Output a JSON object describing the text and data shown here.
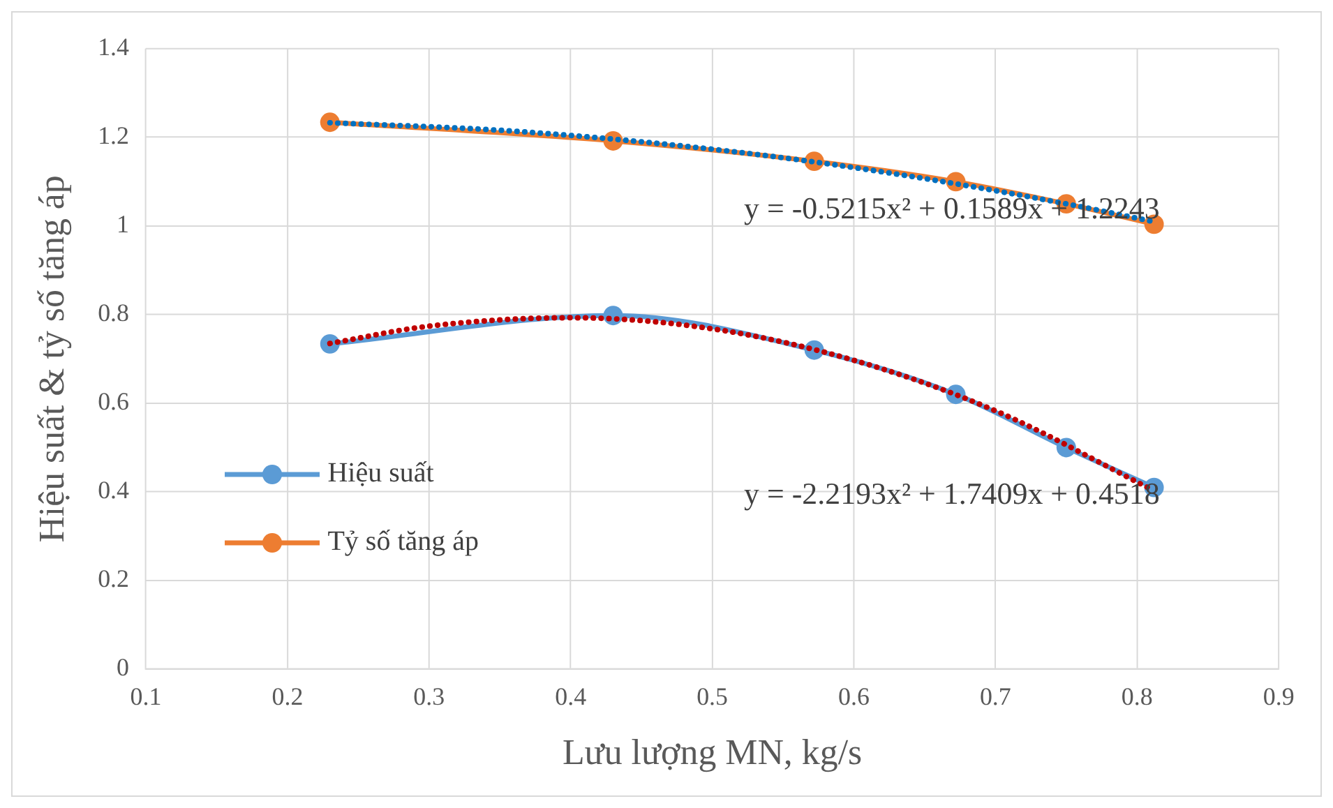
{
  "chart_data": {
    "type": "line",
    "xlabel": "Lưu lượng MN, kg/s",
    "ylabel": "Hiệu suất & tỷ số tăng áp",
    "xlim": [
      0.1,
      0.9
    ],
    "xticks": [
      0.1,
      0.2,
      0.3,
      0.4,
      0.5,
      0.6,
      0.7,
      0.8,
      0.9
    ],
    "ylim": [
      0,
      1.4
    ],
    "yticks": [
      0,
      0.2,
      0.4,
      0.6,
      0.8,
      1,
      1.2,
      1.4
    ],
    "grid": true,
    "legend": "left",
    "series": [
      {
        "name": "Hiệu suất",
        "color": "#5b9bd5",
        "marker": "circle",
        "line_style": "solid",
        "x": [
          0.23,
          0.43,
          0.572,
          0.672,
          0.75,
          0.812
        ],
        "values": [
          0.734,
          0.798,
          0.72,
          0.62,
          0.5,
          0.41
        ]
      },
      {
        "name": "Tỷ số tăng áp",
        "color": "#ed7d31",
        "marker": "circle",
        "line_style": "solid",
        "x": [
          0.23,
          0.43,
          0.572,
          0.672,
          0.75,
          0.812
        ],
        "values": [
          1.234,
          1.192,
          1.146,
          1.1,
          1.05,
          1.004
        ]
      },
      {
        "color": "#0070c0",
        "marker": "none",
        "line_style": "dotted",
        "x": [
          0.23,
          0.35,
          0.45,
          0.55,
          0.65,
          0.75,
          0.81
        ],
        "values": [
          1.233,
          1.216,
          1.19,
          1.154,
          1.107,
          1.05,
          1.011
        ]
      },
      {
        "color": "#c00000",
        "marker": "none",
        "line_style": "dotted",
        "x": [
          0.23,
          0.3,
          0.4,
          0.5,
          0.6,
          0.7,
          0.81
        ],
        "values": [
          0.735,
          0.774,
          0.793,
          0.768,
          0.697,
          0.583,
          0.406
        ]
      }
    ],
    "annotations": [
      "y = -0.5215x² + 0.1589x + 1.2243",
      "y = -2.2193x² + 1.7409x + 0.4518"
    ]
  }
}
